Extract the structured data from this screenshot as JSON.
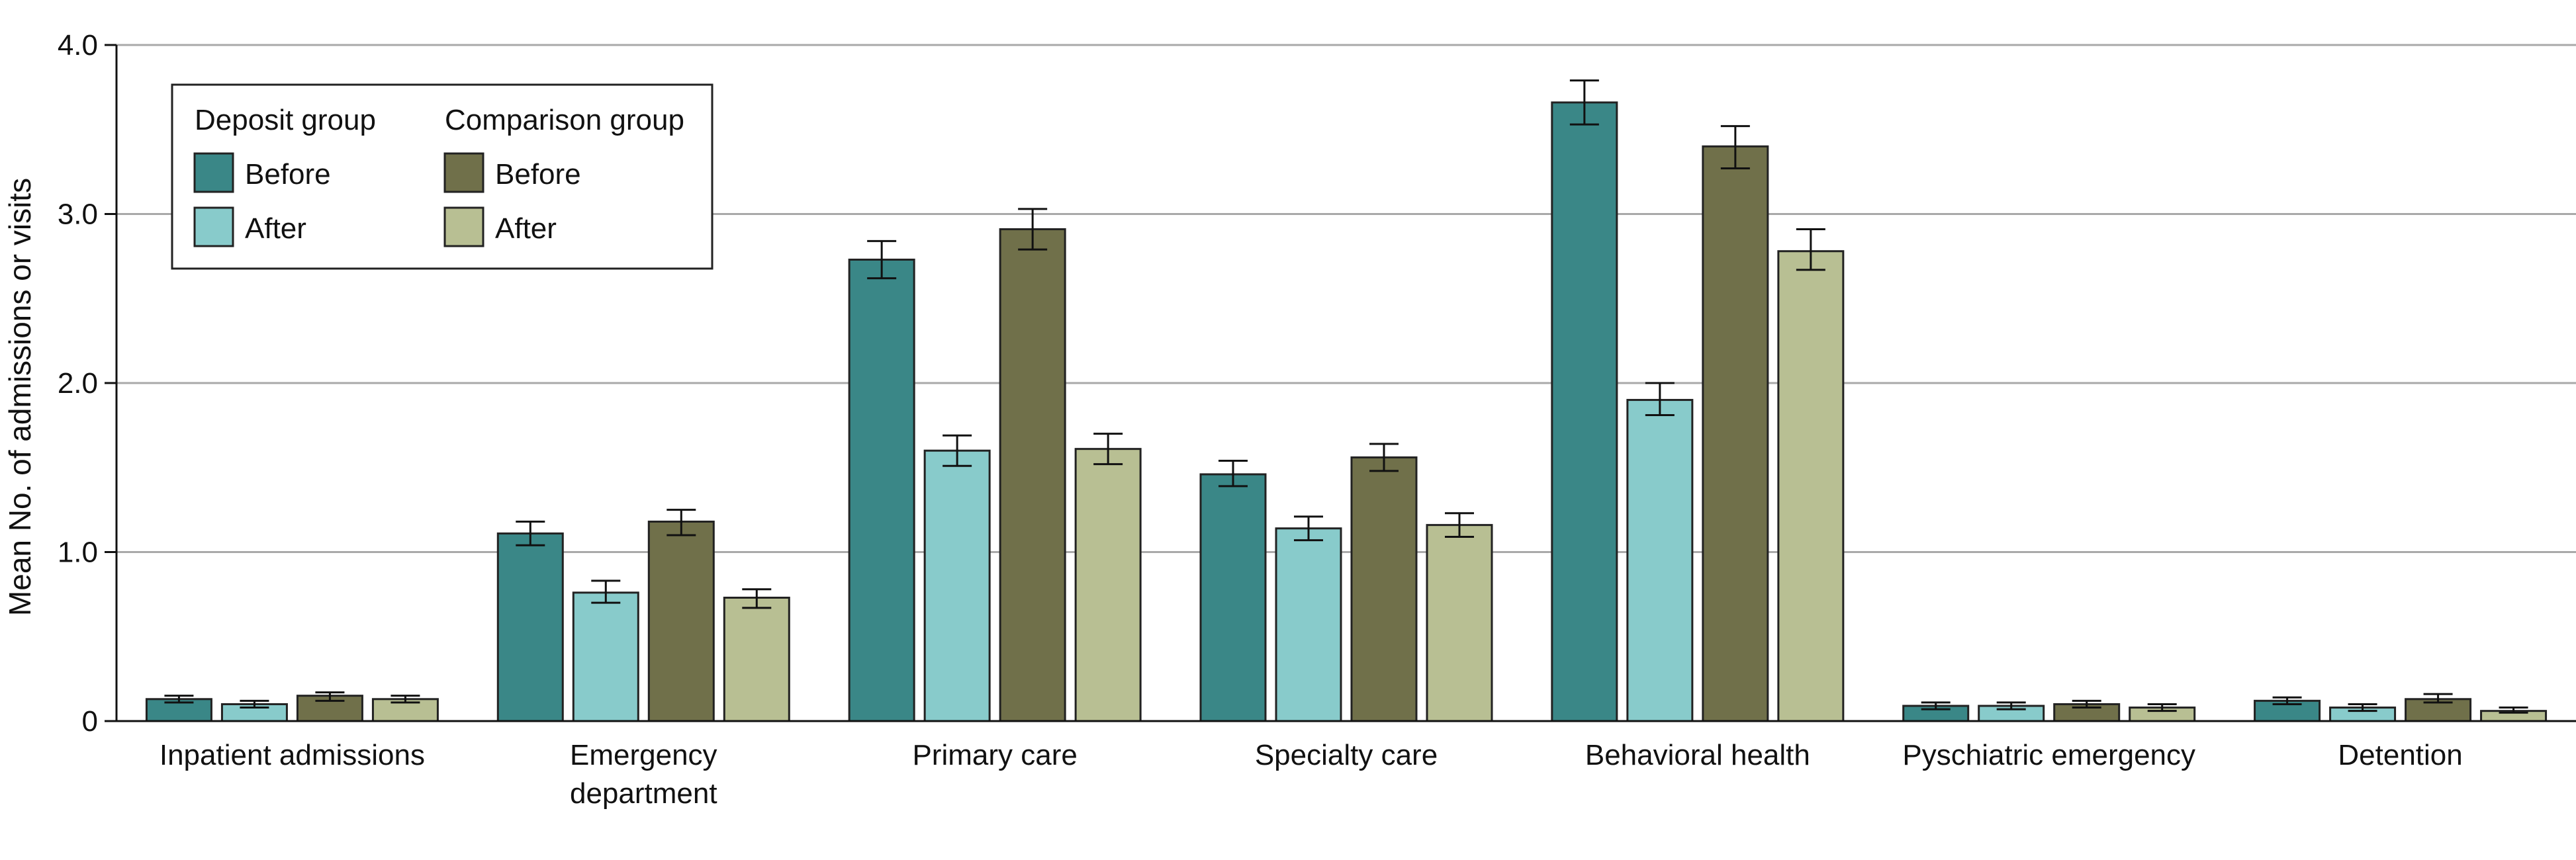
{
  "chart_data": {
    "type": "bar",
    "ylabel": "Mean No. of admissions or visits",
    "xlabel": "",
    "ylim": [
      0,
      4.0
    ],
    "yticks": [
      {
        "value": 0,
        "label": "0"
      },
      {
        "value": 1.0,
        "label": "1.0"
      },
      {
        "value": 2.0,
        "label": "2.0"
      },
      {
        "value": 3.0,
        "label": "3.0"
      },
      {
        "value": 4.0,
        "label": "4.0"
      }
    ],
    "grid": true,
    "legend_position": "top-left",
    "categories": [
      [
        "Inpatient admissions"
      ],
      [
        "Emergency",
        "department"
      ],
      [
        "Primary care"
      ],
      [
        "Specialty care"
      ],
      [
        "Behavioral health"
      ],
      [
        "Pyschiatric emergency"
      ],
      [
        "Detention"
      ]
    ],
    "legend": {
      "group_titles": [
        "Deposit group",
        "Comparison group"
      ]
    },
    "series": [
      {
        "name": "Before",
        "group": "Deposit group",
        "color": "#3a8787",
        "values": [
          0.13,
          1.11,
          2.73,
          1.46,
          3.66,
          0.09,
          0.12
        ],
        "ci_low": [
          0.11,
          1.04,
          2.62,
          1.39,
          3.53,
          0.07,
          0.1
        ],
        "ci_high": [
          0.15,
          1.18,
          2.84,
          1.54,
          3.79,
          0.11,
          0.14
        ]
      },
      {
        "name": "After",
        "group": "Deposit group",
        "color": "#88cbcb",
        "values": [
          0.1,
          0.76,
          1.6,
          1.14,
          1.9,
          0.09,
          0.08
        ],
        "ci_low": [
          0.08,
          0.7,
          1.51,
          1.07,
          1.81,
          0.07,
          0.06
        ],
        "ci_high": [
          0.12,
          0.83,
          1.69,
          1.21,
          2.0,
          0.11,
          0.1
        ]
      },
      {
        "name": "Before",
        "group": "Comparison group",
        "color": "#70704a",
        "values": [
          0.15,
          1.18,
          2.91,
          1.56,
          3.4,
          0.1,
          0.13
        ],
        "ci_low": [
          0.12,
          1.1,
          2.79,
          1.48,
          3.27,
          0.08,
          0.11
        ],
        "ci_high": [
          0.17,
          1.25,
          3.03,
          1.64,
          3.52,
          0.12,
          0.16
        ]
      },
      {
        "name": "After",
        "group": "Comparison group",
        "color": "#b8bf93",
        "values": [
          0.13,
          0.73,
          1.61,
          1.16,
          2.78,
          0.08,
          0.06
        ],
        "ci_low": [
          0.11,
          0.67,
          1.52,
          1.09,
          2.67,
          0.06,
          0.05
        ],
        "ci_high": [
          0.15,
          0.78,
          1.7,
          1.23,
          2.91,
          0.1,
          0.08
        ]
      }
    ]
  }
}
